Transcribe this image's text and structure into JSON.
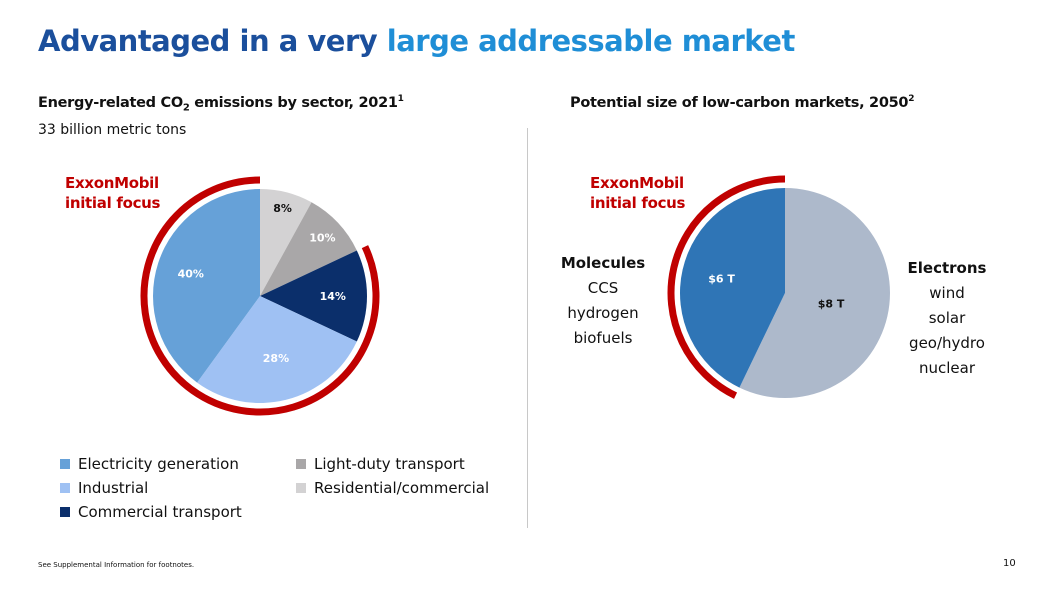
{
  "title": {
    "part1": "Advantaged in a very ",
    "part2": "large addressable market"
  },
  "left": {
    "heading_pre": "Energy-related CO",
    "heading_sub": "2",
    "heading_post": " emissions by sector, 2021",
    "heading_sup": "1",
    "subtitle": "33 billion metric tons",
    "focus_line1": "ExxonMobil",
    "focus_line2": "initial focus"
  },
  "right": {
    "heading": "Potential size of low-carbon markets, 2050",
    "heading_sup": "2",
    "focus_line1": "ExxonMobil",
    "focus_line2": "initial focus",
    "molecules": {
      "title": "Molecules",
      "items": [
        "CCS",
        "hydrogen",
        "biofuels"
      ]
    },
    "electrons": {
      "title": "Electrons",
      "items": [
        "wind",
        "solar",
        "geo/hydro",
        "nuclear"
      ]
    }
  },
  "footer": {
    "note": "See Supplemental Information for footnotes.",
    "page": "10"
  },
  "colors": {
    "focus": "#c00000"
  },
  "chart_data": [
    {
      "type": "pie",
      "title": "Energy-related CO2 emissions by sector, 2021",
      "subtitle": "33 billion metric tons",
      "slices": [
        {
          "name": "Residential/commercial",
          "value": 8,
          "label": "8%",
          "color": "#d3d2d3",
          "label_color": "#111111"
        },
        {
          "name": "Light-duty transport",
          "value": 10,
          "label": "10%",
          "color": "#a9a7a8",
          "label_color": "#ffffff"
        },
        {
          "name": "Commercial transport",
          "value": 14,
          "label": "14%",
          "color": "#0b2f6b",
          "label_color": "#ffffff"
        },
        {
          "name": "Industrial",
          "value": 28,
          "label": "28%",
          "color": "#9fc1f3",
          "label_color": "#ffffff"
        },
        {
          "name": "Electricity generation",
          "value": 40,
          "label": "40%",
          "color": "#66a1d8",
          "label_color": "#ffffff"
        }
      ],
      "highlight": [
        "Commercial transport",
        "Industrial",
        "Electricity generation"
      ],
      "legend": [
        "Electricity generation",
        "Industrial",
        "Commercial transport",
        "Light-duty transport",
        "Residential/commercial"
      ]
    },
    {
      "type": "pie",
      "title": "Potential size of low-carbon markets, 2050",
      "slices": [
        {
          "name": "Electrons",
          "value": 8,
          "label": "$8 T",
          "color": "#adb9cb",
          "label_color": "#111111"
        },
        {
          "name": "Molecules",
          "value": 6,
          "label": "$6 T",
          "color": "#2f75b6",
          "label_color": "#ffffff"
        }
      ],
      "highlight": [
        "Molecules"
      ]
    }
  ]
}
